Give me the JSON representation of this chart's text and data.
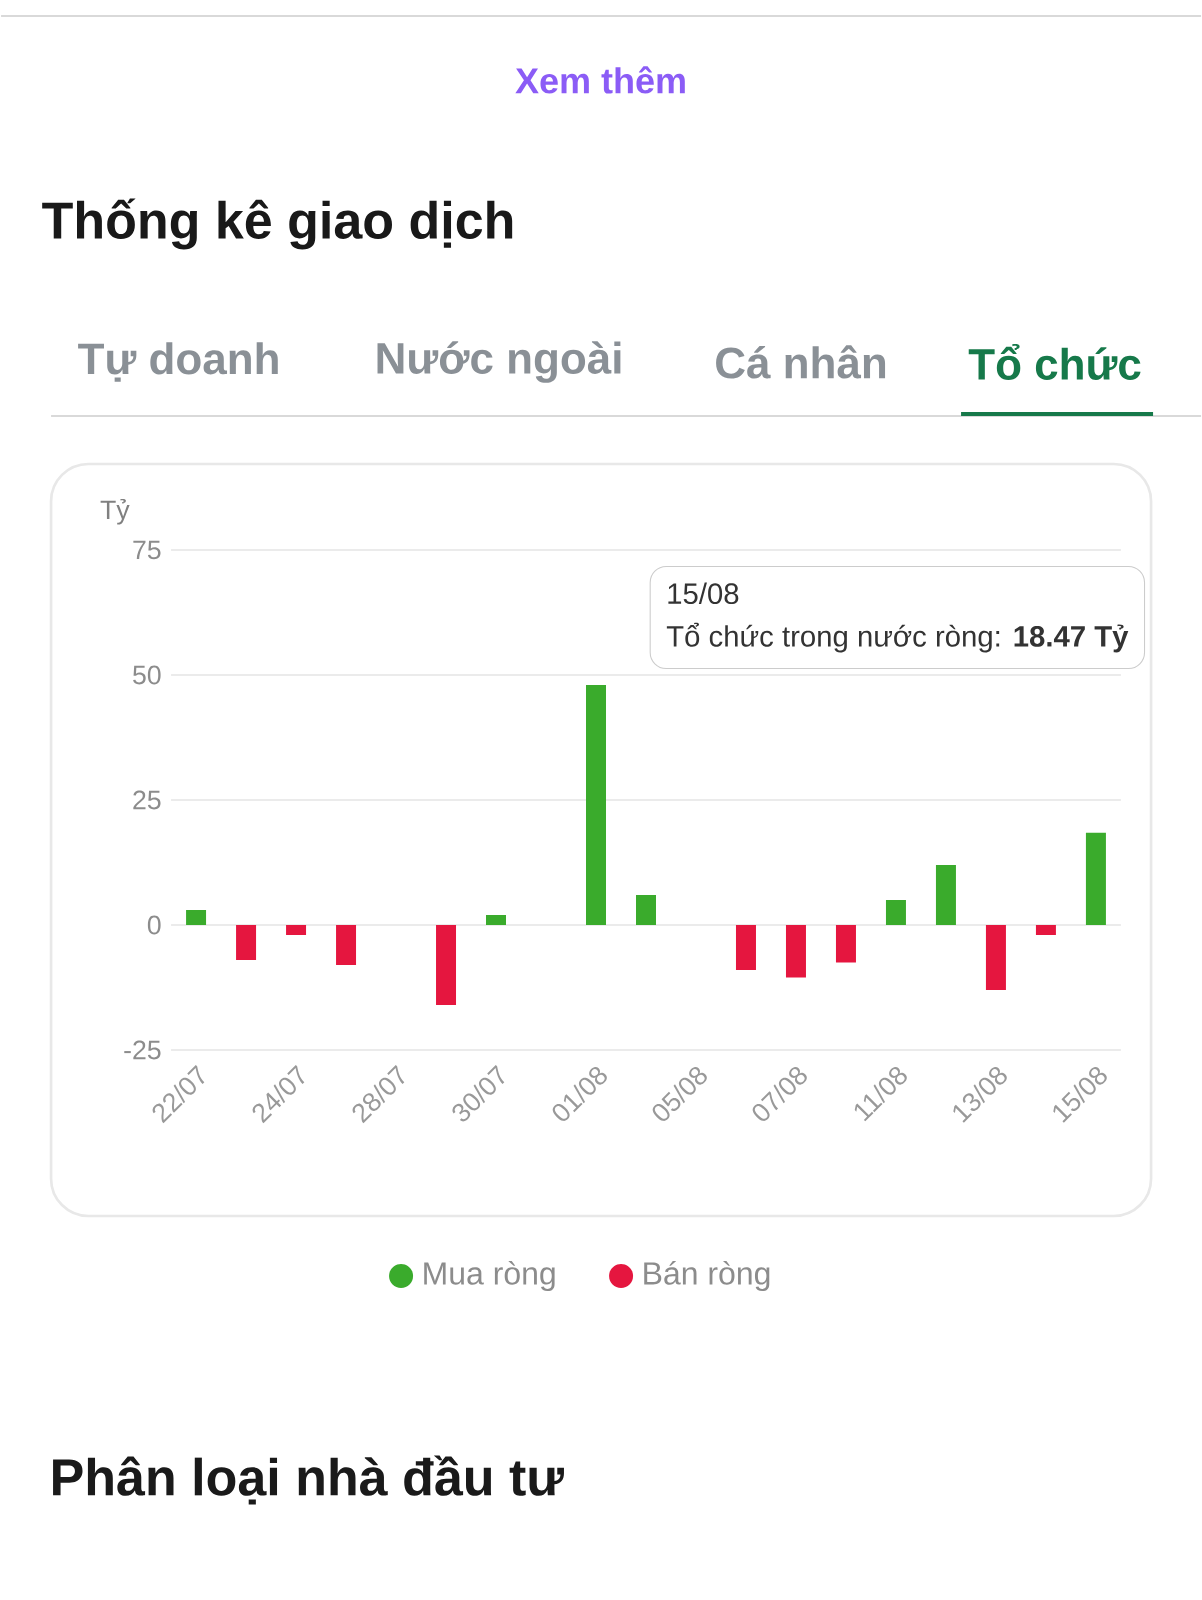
{
  "chart_data": {
    "type": "bar",
    "title": "Thống kê giao dịch",
    "ylabel": "Tỷ",
    "categories": [
      "22/07",
      null,
      "24/07",
      null,
      "28/07",
      null,
      "30/07",
      null,
      "01/08",
      null,
      "05/08",
      null,
      "07/08",
      null,
      "11/08",
      null,
      "13/08",
      null,
      "15/08"
    ],
    "series": [
      {
        "name": "Mua ròng",
        "color": "#3aab2c",
        "values": [
          3,
          null,
          null,
          null,
          null,
          null,
          2,
          null,
          48,
          6,
          null,
          null,
          null,
          null,
          5,
          12,
          null,
          null,
          18.47
        ]
      },
      {
        "name": "Bán ròng",
        "color": "#e5163f",
        "values": [
          null,
          -7,
          -2,
          -8,
          null,
          -16,
          null,
          null,
          null,
          null,
          null,
          -9,
          -10.5,
          -7.5,
          null,
          null,
          -13,
          -2,
          null
        ]
      }
    ],
    "stacked": true,
    "ylim": [
      -25,
      75
    ],
    "yticks": [
      -25,
      0,
      25,
      50,
      75
    ],
    "grid": "y",
    "legend": "bottom",
    "annotations": [
      "Xem thêm",
      "Tự doanh",
      "Nước ngoài",
      "Cá nhân",
      "Tổ chức",
      "Phân loại nhà đầu tư",
      "15/08",
      "Tổ chức trong nước ròng: **18.47 Tỷ**"
    ]
  }
}
